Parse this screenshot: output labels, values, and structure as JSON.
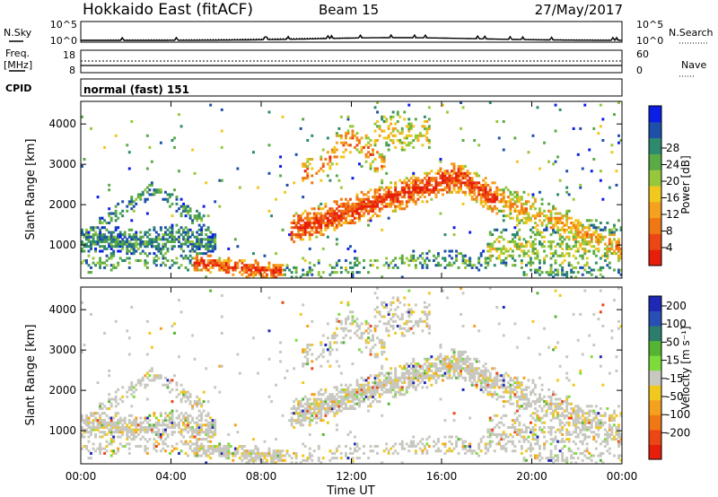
{
  "header": {
    "station": "Hokkaido East (fitACF)",
    "beam": "Beam 15",
    "date": "27/May/2017"
  },
  "nsky_panel": {
    "left_label": "N.Sky",
    "right_label": "N.Search",
    "tick_top": "10^5",
    "tick_bottom": "10^0"
  },
  "freq_panel": {
    "label_line1": "Freq.",
    "label_line2": "[MHz]",
    "tick_top": "18",
    "tick_bottom": "8",
    "right_tick_top": "60",
    "right_tick_bottom": "0",
    "right_label": "Nave"
  },
  "cpid_panel": {
    "label": "CPID",
    "value": "normal (fast) 151"
  },
  "chart_data": [
    {
      "type": "heatmap",
      "name": "power",
      "ylabel": "Slant Range [km]",
      "xlabel": "",
      "x_range_hours": [
        0,
        24
      ],
      "ylim": [
        180,
        4560
      ],
      "yticks": [
        "1000",
        "2000",
        "3000",
        "4000"
      ],
      "colorbar": {
        "title": "Power [dB]",
        "ticks": [
          "4",
          "8",
          "12",
          "16",
          "20",
          "24",
          "28"
        ],
        "colors": [
          "#0a1ee6",
          "#1e50aa",
          "#2e8a6e",
          "#5aaa46",
          "#96c83c",
          "#f0c81e",
          "#f5a01e",
          "#f07814",
          "#eb4614",
          "#e61e0a"
        ]
      }
    },
    {
      "type": "heatmap",
      "name": "velocity",
      "ylabel": "Slant Range [km]",
      "xlabel": "Time UT",
      "x_range_hours": [
        0,
        24
      ],
      "ylim": [
        180,
        4560
      ],
      "yticks": [
        "1000",
        "2000",
        "3000",
        "4000"
      ],
      "xticks": [
        "00:00",
        "04:00",
        "08:00",
        "12:00",
        "16:00",
        "20:00",
        "00:00"
      ],
      "colorbar": {
        "title": "Velocity [m s⁻¹]",
        "ticks": [
          "200",
          "100",
          "50",
          "15",
          "-15",
          "-50",
          "-100",
          "-200"
        ],
        "colors": [
          "#1e28b4",
          "#2850b4",
          "#2d7d6e",
          "#55b432",
          "#7ddc3c",
          "#c8c8c0",
          "#f0c81e",
          "#f5a01e",
          "#f07814",
          "#eb4614",
          "#e61e0a"
        ]
      }
    }
  ]
}
